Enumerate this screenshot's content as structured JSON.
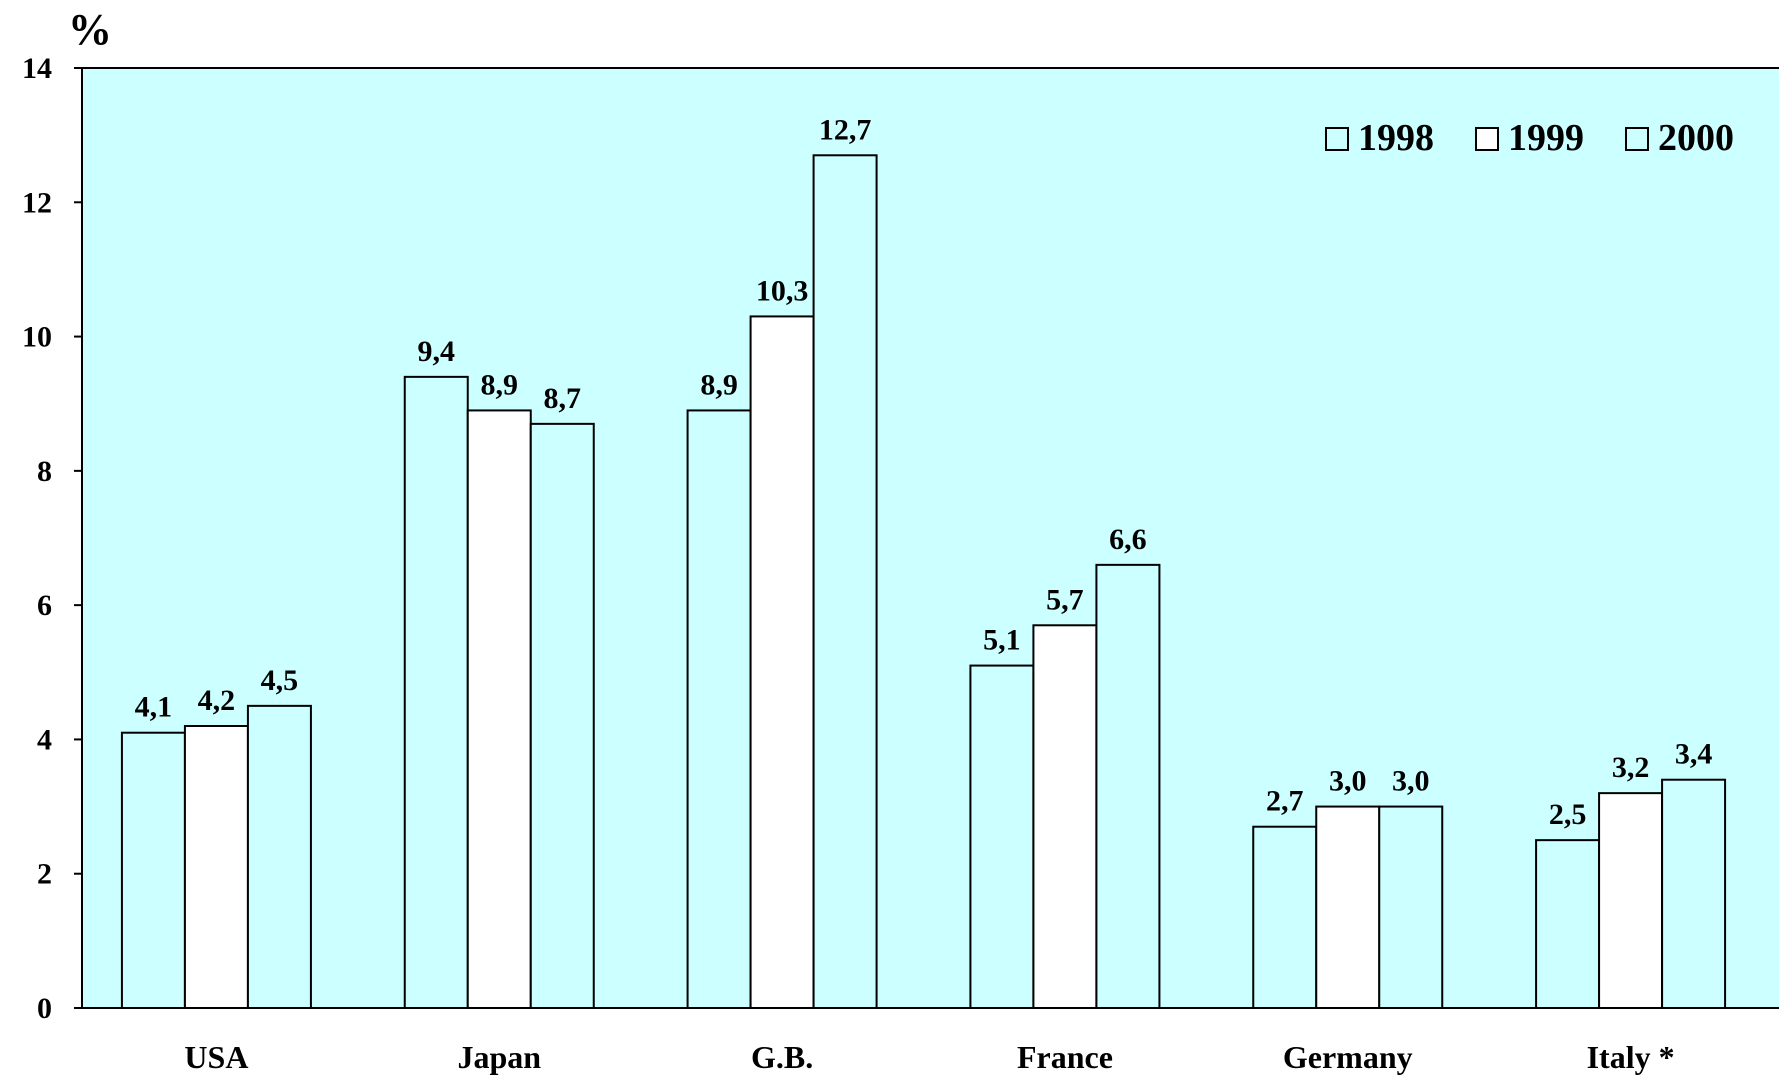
{
  "chart_data": {
    "type": "bar",
    "unit_label": "%",
    "categories": [
      "USA",
      "Japan",
      "G.B.",
      "France",
      "Germany",
      "Italy *"
    ],
    "series": [
      {
        "name": "1998",
        "values": [
          4.1,
          9.4,
          8.9,
          5.1,
          2.7,
          2.5
        ],
        "labels": [
          "4,1",
          "9,4",
          "8,9",
          "5,1",
          "2,7",
          "2,5"
        ],
        "color": "#ccffff"
      },
      {
        "name": "1999",
        "values": [
          4.2,
          8.9,
          10.3,
          5.7,
          3.0,
          3.2
        ],
        "labels": [
          "4,2",
          "8,9",
          "10,3",
          "5,7",
          "3,0",
          "3,2"
        ],
        "color": "#ffffff"
      },
      {
        "name": "2000",
        "values": [
          4.5,
          8.7,
          12.7,
          6.6,
          3.0,
          3.4
        ],
        "labels": [
          "4,5",
          "8,7",
          "12,7",
          "6,6",
          "3,0",
          "3,4"
        ],
        "color": "#ccffff"
      }
    ],
    "ylim": [
      0,
      14
    ],
    "yticks": [
      0,
      2,
      4,
      6,
      8,
      10,
      12,
      14
    ],
    "grid": false,
    "legend": "top-right",
    "plot_background": "#ccffff"
  }
}
